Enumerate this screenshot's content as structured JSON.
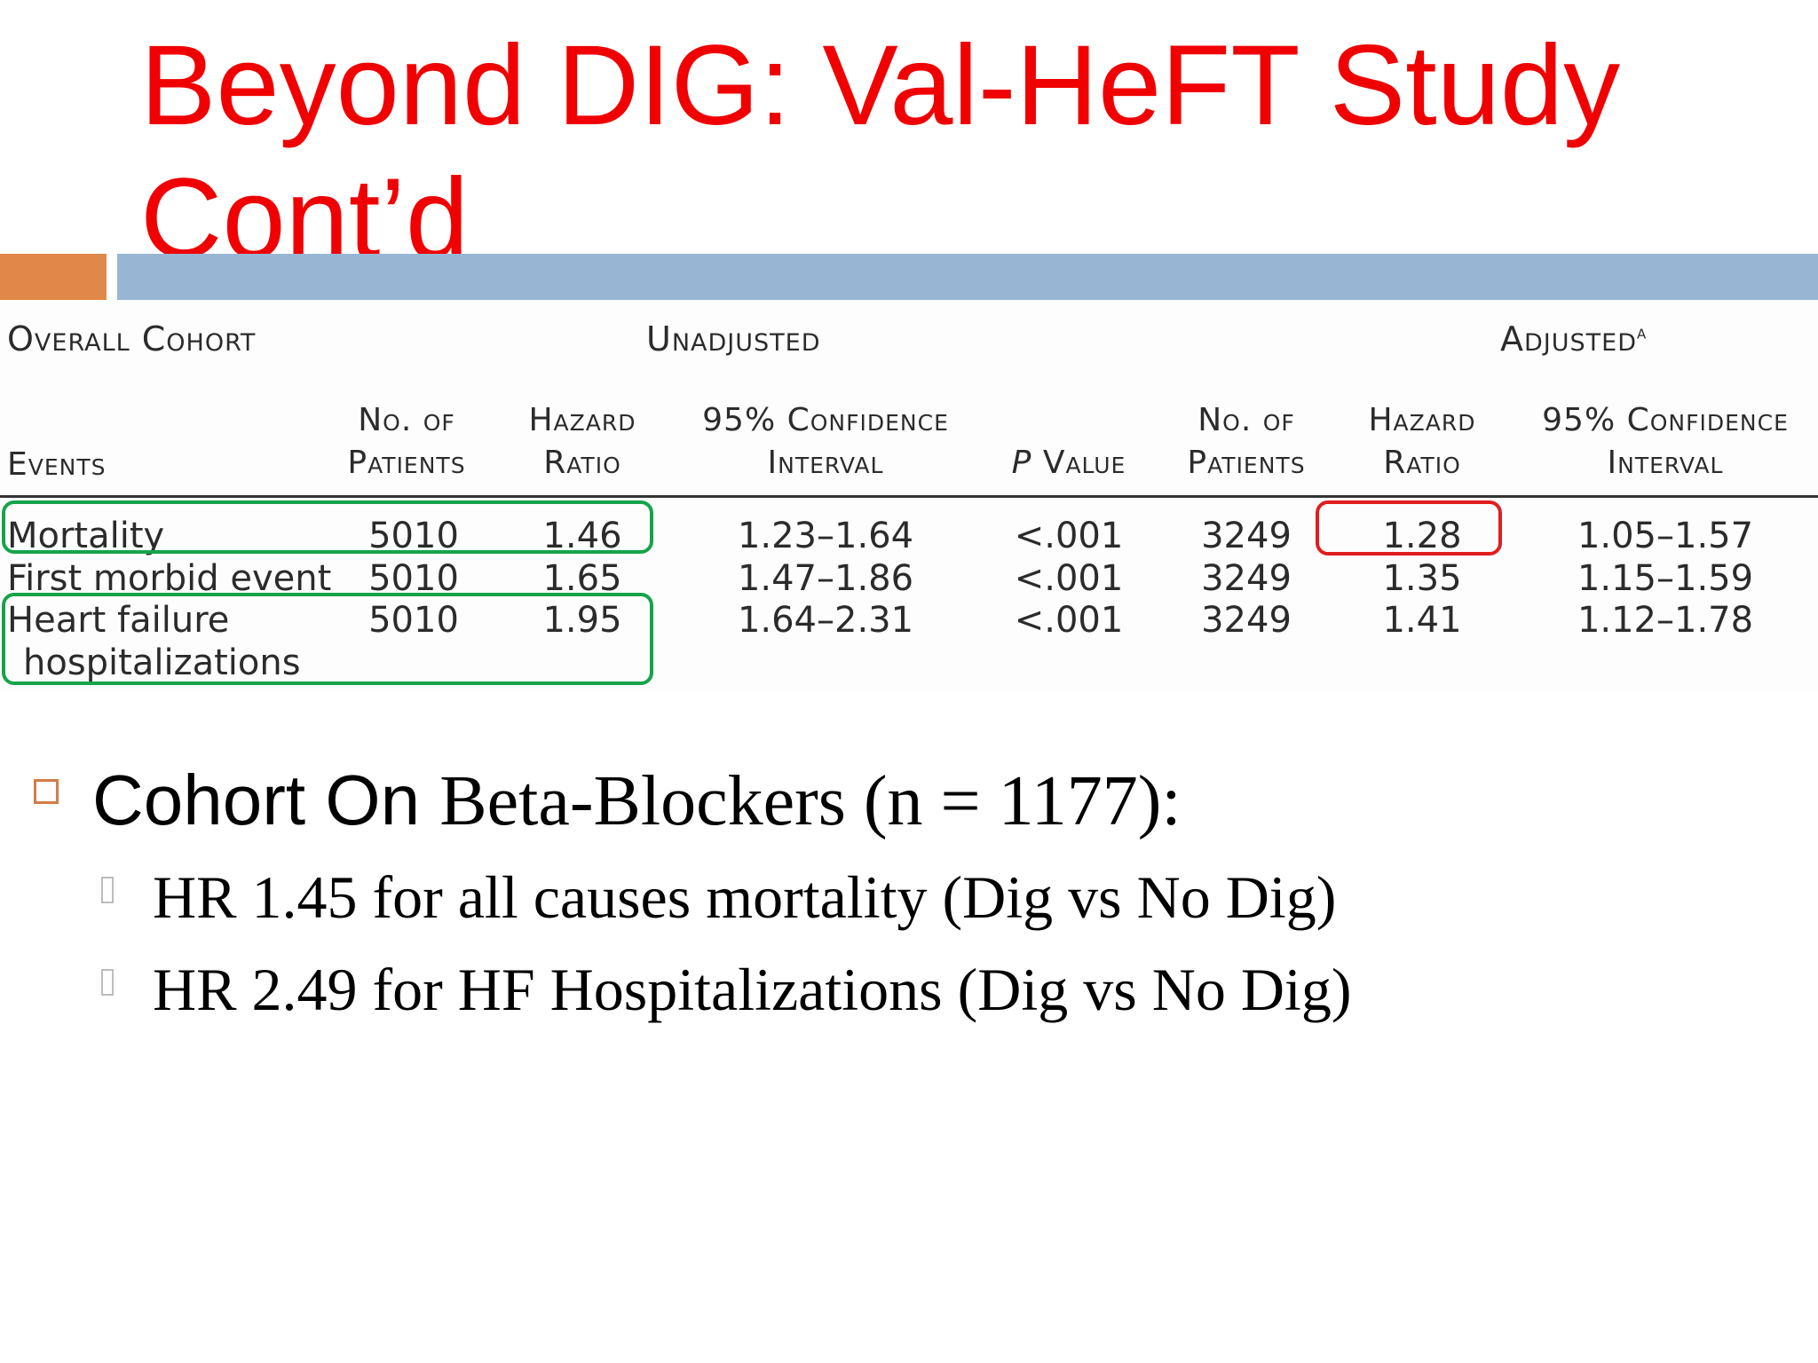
{
  "slide": {
    "title": "Beyond DIG: Val-HeFT Study Cont’d",
    "accent_colors": {
      "title": "#f00000",
      "orange_bar": "#e0874a",
      "blue_bar": "#98b6d4"
    }
  },
  "table": {
    "group_labels": {
      "overall_cohort": "Overall Cohort",
      "unadjusted": "Unadjusted",
      "adjusted": "Adjusted",
      "adjusted_footnote": "a"
    },
    "columns": {
      "events": "Events",
      "no_patients": [
        "No. of",
        "Patients"
      ],
      "hazard_ratio": [
        "Hazard",
        "Ratio"
      ],
      "ci": [
        "95% Confidence",
        "Interval"
      ],
      "p_value_italic": "P",
      "p_value_rest": " Value",
      "adj_no_patients": [
        "No. of",
        "Patients"
      ],
      "adj_hazard_ratio": [
        "Hazard",
        "Ratio"
      ],
      "adj_ci": [
        "95% Confidence",
        "Interval"
      ]
    },
    "rows": [
      {
        "event": "Mortality",
        "event2": "",
        "n": "5010",
        "hr": "1.46",
        "ci": "1.23–1.64",
        "p": "<.001",
        "adj_n": "3249",
        "adj_hr": "1.28",
        "adj_ci": "1.05–1.57"
      },
      {
        "event": "First morbid event",
        "event2": "",
        "n": "5010",
        "hr": "1.65",
        "ci": "1.47–1.86",
        "p": "<.001",
        "adj_n": "3249",
        "adj_hr": "1.35",
        "adj_ci": "1.15–1.59"
      },
      {
        "event": "Heart failure",
        "event2": "hospitalizations",
        "n": "5010",
        "hr": "1.95",
        "ci": "1.64–2.31",
        "p": "<.001",
        "adj_n": "3249",
        "adj_hr": "1.41",
        "adj_ci": "1.12–1.78"
      }
    ],
    "highlight_colors": {
      "green": "#16a34a",
      "red": "#e11d1d"
    }
  },
  "bullets": {
    "main_sans": "Cohort On ",
    "main_serif": "Beta-Blockers (n = 1177):",
    "sub": [
      "HR 1.45 for all causes mortality (Dig vs No Dig)",
      "HR 2.49 for HF Hospitalizations (Dig vs No Dig)"
    ]
  }
}
